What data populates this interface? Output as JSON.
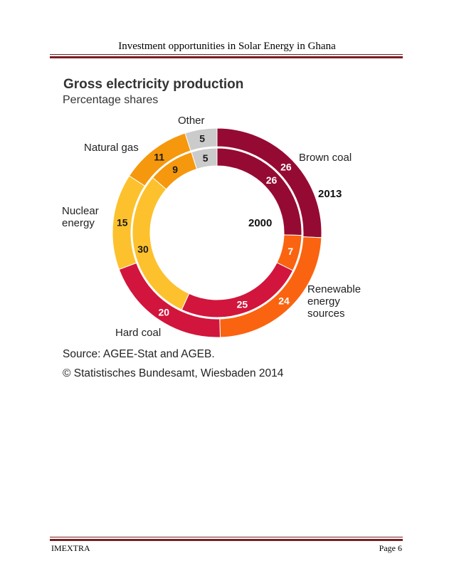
{
  "document": {
    "header": "Investment opportunities in Solar Energy in Ghana",
    "footer_left": "IMEXTRA",
    "footer_right": "Page 6"
  },
  "chart_data": {
    "type": "donut",
    "title": "Gross electricity production",
    "subtitle": "Percentage shares",
    "unit": "%",
    "source": "Source: AGEE-Stat and AGEB.",
    "copyright": "© Statistisches Bundesamt, Wiesbaden 2014",
    "rings": [
      {
        "name": "2013",
        "position": "outer"
      },
      {
        "name": "2000",
        "position": "inner"
      }
    ],
    "categories": [
      {
        "key": "brown-coal",
        "label": [
          "Brown coal"
        ],
        "color": "#950a33",
        "values": {
          "2013": 26,
          "2000": 26
        }
      },
      {
        "key": "renewable",
        "label": [
          "Renewable",
          "energy",
          "sources"
        ],
        "color": "#fa6410",
        "values": {
          "2013": 24,
          "2000": 7
        }
      },
      {
        "key": "hard-coal",
        "label": [
          "Hard coal"
        ],
        "color": "#d2153c",
        "values": {
          "2013": 20,
          "2000": 25
        }
      },
      {
        "key": "nuclear",
        "label": [
          "Nuclear",
          "energy"
        ],
        "color": "#fcc12d",
        "values": {
          "2013": 15,
          "2000": 30
        }
      },
      {
        "key": "natural-gas",
        "label": [
          "Natural gas"
        ],
        "color": "#f5980d",
        "values": {
          "2013": 11,
          "2000": 9
        }
      },
      {
        "key": "other",
        "label": [
          "Other"
        ],
        "color": "#cbcbcb",
        "values": {
          "2013": 5,
          "2000": 5
        }
      }
    ]
  }
}
